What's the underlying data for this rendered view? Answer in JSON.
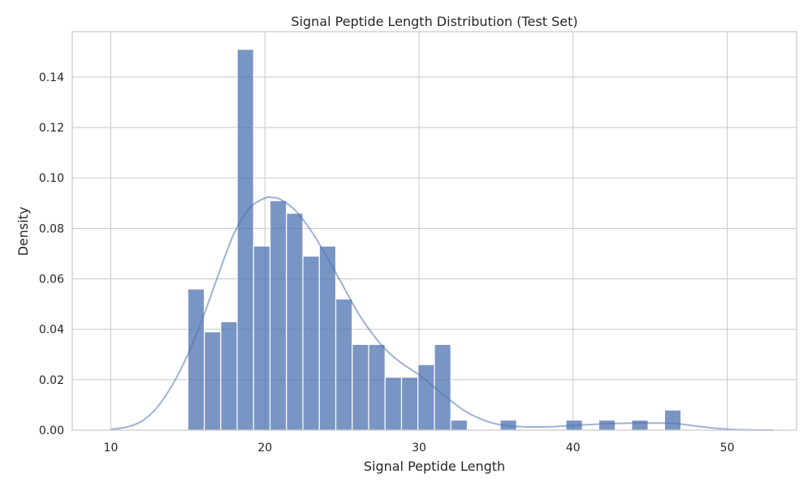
{
  "chart_data": {
    "type": "bar",
    "title": "Signal Peptide Length Distribution (Test Set)",
    "xlabel": "Signal Peptide Length",
    "ylabel": "Density",
    "xlim": [
      7.5,
      54.5
    ],
    "ylim": [
      0,
      0.158
    ],
    "x_ticks": [
      10,
      20,
      30,
      40,
      50
    ],
    "y_ticks": [
      0.0,
      0.02,
      0.04,
      0.06,
      0.08,
      0.1,
      0.12,
      0.14
    ],
    "x_tick_labels": [
      "10",
      "20",
      "30",
      "40",
      "50"
    ],
    "y_tick_labels": [
      "0.00",
      "0.02",
      "0.04",
      "0.06",
      "0.08",
      "0.10",
      "0.12",
      "0.14"
    ],
    "grid": true,
    "bar_color": "#4c72b0",
    "bar_opacity": 0.75,
    "kde_color": "#4c72b0",
    "kde_opacity": 0.55,
    "bins": [
      {
        "x0": 15.0,
        "x1": 16.0667,
        "value": 0.056
      },
      {
        "x0": 16.0667,
        "x1": 17.1333,
        "value": 0.039
      },
      {
        "x0": 17.1333,
        "x1": 18.2,
        "value": 0.043
      },
      {
        "x0": 18.2,
        "x1": 19.2667,
        "value": 0.151
      },
      {
        "x0": 19.2667,
        "x1": 20.3333,
        "value": 0.073
      },
      {
        "x0": 20.3333,
        "x1": 21.4,
        "value": 0.091
      },
      {
        "x0": 21.4,
        "x1": 22.4667,
        "value": 0.086
      },
      {
        "x0": 22.4667,
        "x1": 23.5333,
        "value": 0.069
      },
      {
        "x0": 23.5333,
        "x1": 24.6,
        "value": 0.073
      },
      {
        "x0": 24.6,
        "x1": 25.6667,
        "value": 0.052
      },
      {
        "x0": 25.6667,
        "x1": 26.7333,
        "value": 0.034
      },
      {
        "x0": 26.7333,
        "x1": 27.8,
        "value": 0.034
      },
      {
        "x0": 27.8,
        "x1": 28.8667,
        "value": 0.021
      },
      {
        "x0": 28.8667,
        "x1": 29.9333,
        "value": 0.021
      },
      {
        "x0": 29.9333,
        "x1": 31.0,
        "value": 0.026
      },
      {
        "x0": 31.0,
        "x1": 32.0667,
        "value": 0.034
      },
      {
        "x0": 32.0667,
        "x1": 33.1333,
        "value": 0.004
      },
      {
        "x0": 33.1333,
        "x1": 34.2,
        "value": 0.0
      },
      {
        "x0": 34.2,
        "x1": 35.2667,
        "value": 0.0
      },
      {
        "x0": 35.2667,
        "x1": 36.3333,
        "value": 0.004
      },
      {
        "x0": 36.3333,
        "x1": 37.4,
        "value": 0.0
      },
      {
        "x0": 37.4,
        "x1": 38.4667,
        "value": 0.0
      },
      {
        "x0": 38.4667,
        "x1": 39.5333,
        "value": 0.0
      },
      {
        "x0": 39.5333,
        "x1": 40.6,
        "value": 0.004
      },
      {
        "x0": 40.6,
        "x1": 41.6667,
        "value": 0.0
      },
      {
        "x0": 41.6667,
        "x1": 42.7333,
        "value": 0.004
      },
      {
        "x0": 42.7333,
        "x1": 43.8,
        "value": 0.0
      },
      {
        "x0": 43.8,
        "x1": 44.8667,
        "value": 0.004
      },
      {
        "x0": 44.8667,
        "x1": 45.9333,
        "value": 0.0
      },
      {
        "x0": 45.9333,
        "x1": 47.0,
        "value": 0.008
      }
    ],
    "kde": {
      "x": [
        10,
        11,
        12,
        13,
        14,
        15,
        16,
        17,
        18,
        19,
        20,
        20.5,
        21,
        22,
        23,
        24,
        25,
        26,
        27,
        28,
        29,
        30,
        31,
        32,
        33,
        34,
        35,
        36,
        37,
        38,
        39,
        40,
        41,
        42,
        43,
        44,
        45,
        46,
        47,
        48,
        49,
        50,
        51,
        52,
        53
      ],
      "y": [
        0.0003,
        0.0012,
        0.0035,
        0.009,
        0.018,
        0.03,
        0.045,
        0.062,
        0.078,
        0.088,
        0.092,
        0.0922,
        0.0915,
        0.087,
        0.079,
        0.069,
        0.058,
        0.047,
        0.038,
        0.031,
        0.026,
        0.022,
        0.017,
        0.012,
        0.0075,
        0.0045,
        0.0025,
        0.0016,
        0.0013,
        0.0013,
        0.0015,
        0.0019,
        0.0022,
        0.0025,
        0.0027,
        0.0028,
        0.0028,
        0.0028,
        0.0024,
        0.0016,
        0.0009,
        0.0004,
        0.00015,
        5e-05,
        1e-05
      ]
    }
  }
}
